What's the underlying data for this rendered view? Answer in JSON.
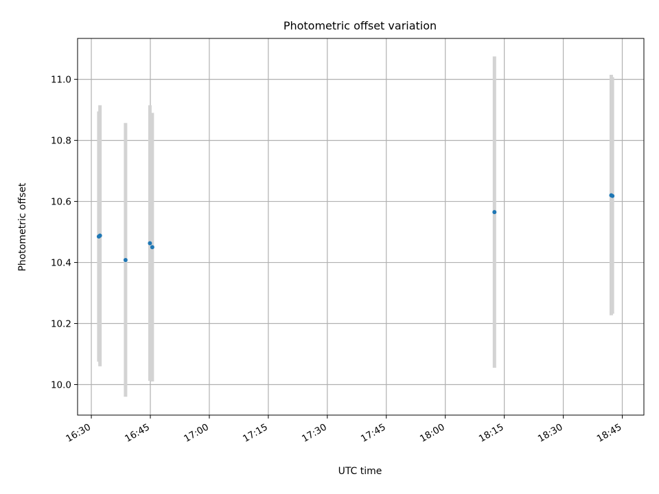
{
  "chart_data": {
    "type": "scatter",
    "title": "Photometric offset variation",
    "xlabel": "UTC time",
    "ylabel": "Photometric offset",
    "x_format": "HH:MM",
    "xlim": [
      "16:26:30",
      "18:50:30"
    ],
    "ylim": [
      9.9,
      11.134
    ],
    "x_ticks": [
      "16:30",
      "16:45",
      "17:00",
      "17:15",
      "17:30",
      "17:45",
      "18:00",
      "18:15",
      "18:30",
      "18:45"
    ],
    "y_ticks": [
      "10.0",
      "10.2",
      "10.4",
      "10.6",
      "10.8",
      "11.0"
    ],
    "grid": true,
    "colors": {
      "marker": "#1f77b4",
      "errorbar": "#d3d3d3",
      "grid": "#b0b0b0"
    },
    "points": [
      {
        "x": "16:31:54",
        "y": 10.485,
        "yerr_low": 10.075,
        "yerr_high": 10.895
      },
      {
        "x": "16:32:12",
        "y": 10.488,
        "yerr_low": 10.06,
        "yerr_high": 10.915
      },
      {
        "x": "16:38:42",
        "y": 10.408,
        "yerr_low": 9.96,
        "yerr_high": 10.857
      },
      {
        "x": "16:44:54",
        "y": 10.463,
        "yerr_low": 10.012,
        "yerr_high": 10.915
      },
      {
        "x": "16:45:30",
        "y": 10.45,
        "yerr_low": 10.01,
        "yerr_high": 10.89
      },
      {
        "x": "18:12:30",
        "y": 10.565,
        "yerr_low": 10.055,
        "yerr_high": 11.075
      },
      {
        "x": "18:42:12",
        "y": 10.62,
        "yerr_low": 10.227,
        "yerr_high": 11.015
      },
      {
        "x": "18:42:30",
        "y": 10.618,
        "yerr_low": 10.232,
        "yerr_high": 11.007
      }
    ]
  }
}
